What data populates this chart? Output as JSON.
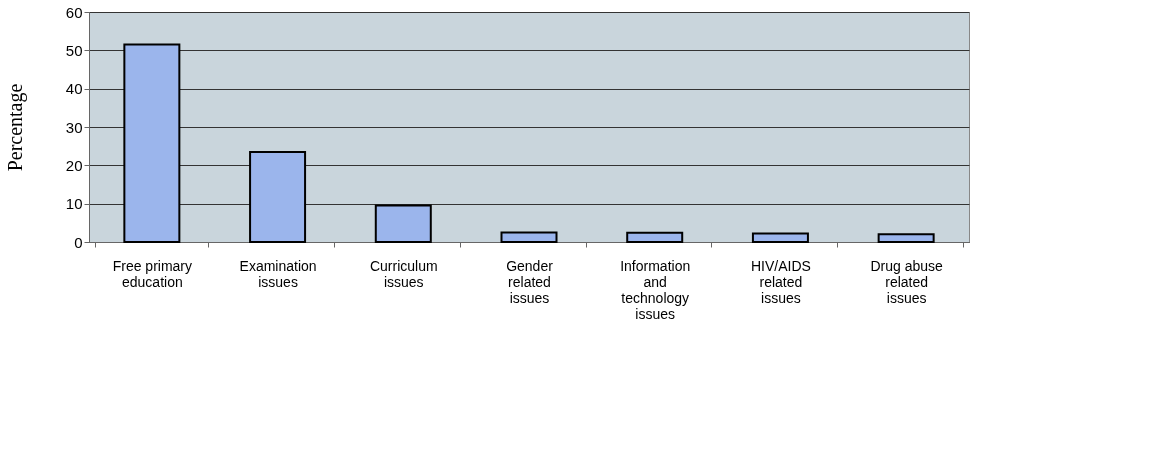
{
  "chart_data": {
    "type": "bar",
    "ylabel": "Percentage",
    "categories": [
      "Free primary education",
      "Examination issues",
      "Curriculum issues",
      "Gender related issues",
      "Information and technology issues",
      "HIV/AIDS related issues",
      "Drug abuse related issues"
    ],
    "series": [
      {
        "color": "#9bb5ec",
        "values": [
          51.5,
          23.5,
          9.5,
          2.5,
          2.4,
          2.2,
          2
        ]
      }
    ],
    "ylim": [
      0,
      60
    ],
    "yticks": [
      0,
      10,
      20,
      30,
      40,
      50,
      60
    ],
    "grid": "y"
  }
}
